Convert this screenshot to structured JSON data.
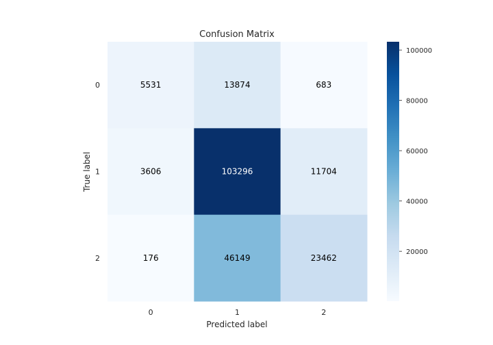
{
  "chart_data": {
    "type": "heatmap",
    "title": "Confusion Matrix",
    "xlabel": "Predicted label",
    "ylabel": "True label",
    "x_categories": [
      "0",
      "1",
      "2"
    ],
    "y_categories": [
      "0",
      "1",
      "2"
    ],
    "values": [
      [
        5531,
        13874,
        683
      ],
      [
        3606,
        103296,
        11704
      ],
      [
        176,
        46149,
        23462
      ]
    ],
    "colormap": "Blues",
    "colormap_stops": [
      "#f7fbff",
      "#deebf7",
      "#c6dbef",
      "#9ecae1",
      "#6baed6",
      "#4292c6",
      "#2171b5",
      "#08519c",
      "#08306b"
    ],
    "color_range": [
      176,
      103296
    ],
    "colorbar_ticks": [
      20000,
      40000,
      60000,
      80000,
      100000
    ],
    "colorbar_tick_labels": [
      "20000",
      "40000",
      "60000",
      "80000",
      "100000"
    ],
    "text_color_dark": "#000000",
    "text_color_light": "#ffffff",
    "grid": false
  }
}
